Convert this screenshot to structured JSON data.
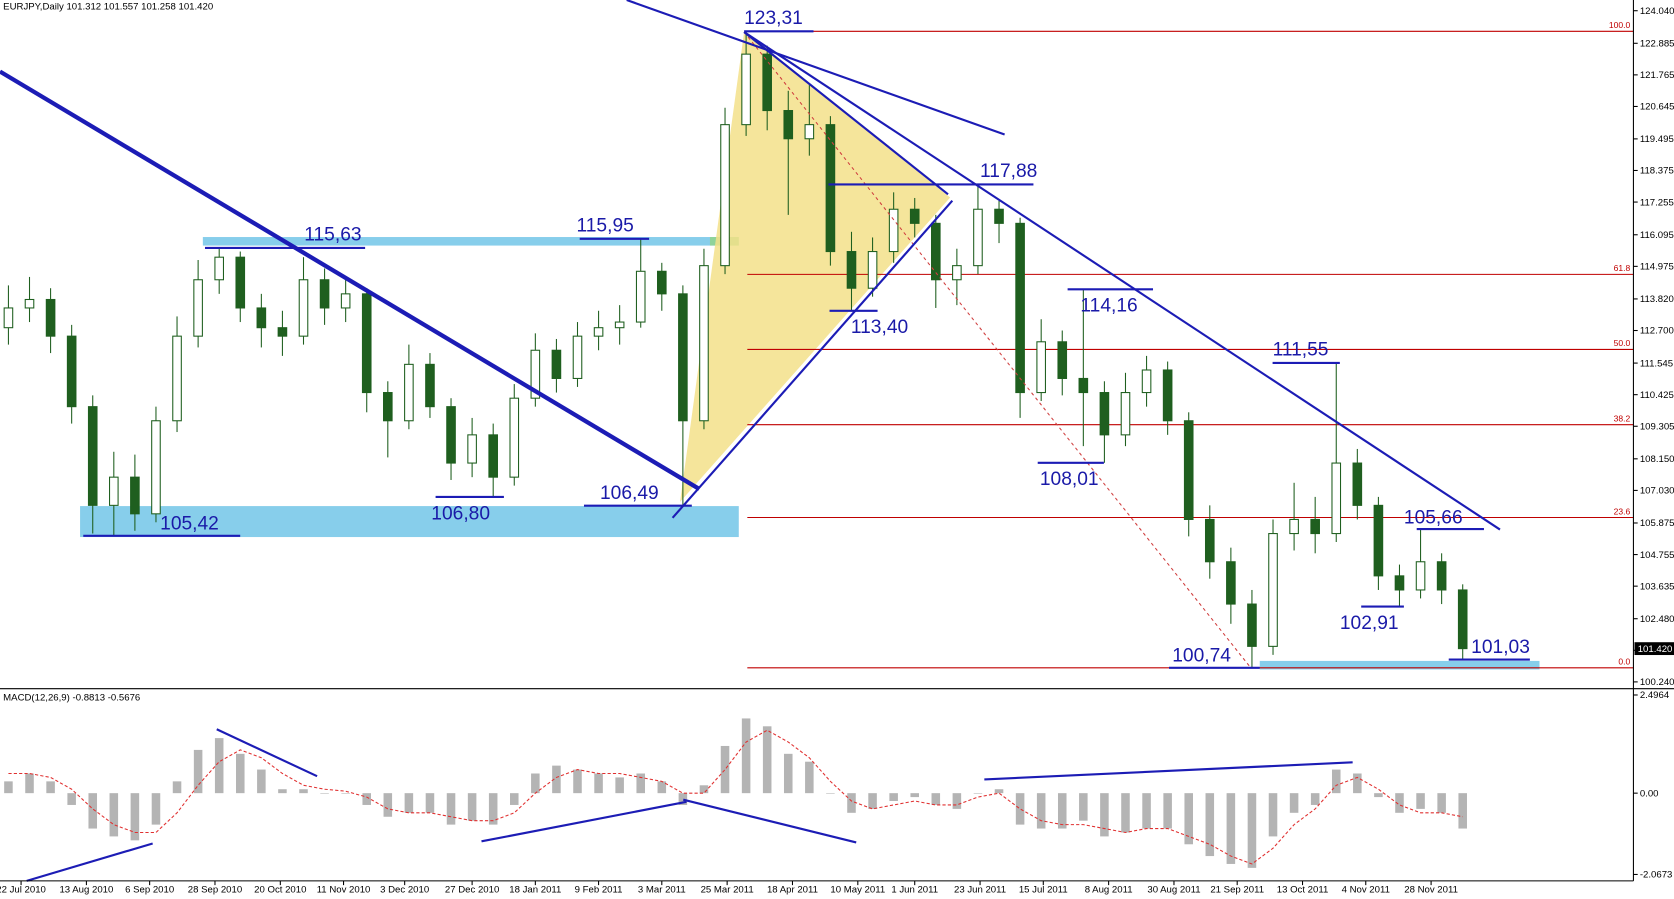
{
  "chart_data": [
    {
      "type": "candlestick",
      "title": "EURJPY,Daily  101.312 101.557 101.258 101.420",
      "colors": {
        "up": "#ffffff",
        "down": "#1f5f1f",
        "outline": "#1f5f1f"
      },
      "ohlc": [
        [
          112.8,
          114.3,
          112.2,
          113.5
        ],
        [
          113.5,
          114.6,
          113.0,
          113.8
        ],
        [
          113.8,
          114.2,
          111.9,
          112.5
        ],
        [
          112.5,
          112.9,
          109.4,
          110.0
        ],
        [
          110.0,
          110.4,
          105.5,
          106.5
        ],
        [
          106.5,
          108.4,
          105.4,
          107.5
        ],
        [
          107.5,
          108.3,
          105.6,
          106.2
        ],
        [
          106.2,
          110.0,
          105.9,
          109.5
        ],
        [
          109.5,
          113.2,
          109.1,
          112.5
        ],
        [
          112.5,
          115.2,
          112.1,
          114.5
        ],
        [
          114.5,
          115.63,
          114.0,
          115.3
        ],
        [
          115.3,
          115.5,
          113.0,
          113.5
        ],
        [
          113.5,
          114.0,
          112.1,
          112.8
        ],
        [
          112.8,
          113.4,
          111.8,
          112.5
        ],
        [
          112.5,
          115.3,
          112.2,
          114.5
        ],
        [
          114.5,
          114.9,
          112.9,
          113.5
        ],
        [
          113.5,
          114.6,
          113.0,
          114.0
        ],
        [
          114.0,
          114.2,
          109.8,
          110.5
        ],
        [
          110.5,
          110.9,
          108.2,
          109.5
        ],
        [
          109.5,
          112.2,
          109.2,
          111.5
        ],
        [
          111.5,
          111.9,
          109.6,
          110.0
        ],
        [
          110.0,
          110.3,
          107.4,
          108.0
        ],
        [
          108.0,
          109.6,
          107.5,
          109.0
        ],
        [
          109.0,
          109.4,
          106.8,
          107.5
        ],
        [
          107.5,
          110.8,
          107.2,
          110.3
        ],
        [
          110.3,
          112.6,
          110.0,
          112.0
        ],
        [
          112.0,
          112.4,
          110.5,
          111.0
        ],
        [
          111.0,
          113.0,
          110.7,
          112.5
        ],
        [
          112.5,
          113.4,
          112.0,
          112.8
        ],
        [
          112.8,
          113.6,
          112.2,
          113.0
        ],
        [
          113.0,
          115.95,
          112.8,
          114.8
        ],
        [
          114.8,
          115.1,
          113.4,
          114.0
        ],
        [
          114.0,
          114.3,
          106.49,
          109.5
        ],
        [
          109.5,
          115.6,
          109.2,
          115.0
        ],
        [
          115.0,
          120.6,
          114.7,
          120.0
        ],
        [
          120.0,
          123.31,
          119.6,
          122.5
        ],
        [
          122.5,
          122.8,
          119.8,
          120.5
        ],
        [
          120.5,
          121.2,
          116.8,
          119.5
        ],
        [
          119.5,
          121.4,
          118.9,
          120.0
        ],
        [
          120.0,
          120.3,
          115.0,
          115.5
        ],
        [
          115.5,
          116.2,
          113.4,
          114.2
        ],
        [
          114.2,
          116.0,
          113.9,
          115.5
        ],
        [
          115.5,
          117.6,
          115.1,
          117.0
        ],
        [
          117.0,
          117.4,
          116.0,
          116.5
        ],
        [
          116.5,
          116.8,
          113.5,
          114.5
        ],
        [
          114.5,
          115.6,
          113.6,
          115.0
        ],
        [
          115.0,
          117.88,
          114.7,
          117.0
        ],
        [
          117.0,
          117.3,
          115.8,
          116.5
        ],
        [
          116.5,
          116.7,
          109.6,
          110.5
        ],
        [
          110.5,
          113.1,
          110.2,
          112.3
        ],
        [
          112.3,
          112.7,
          110.4,
          111.0
        ],
        [
          111.0,
          114.16,
          108.6,
          110.5
        ],
        [
          110.5,
          110.9,
          108.01,
          109.0
        ],
        [
          109.0,
          111.2,
          108.6,
          110.5
        ],
        [
          110.5,
          111.8,
          110.0,
          111.3
        ],
        [
          111.3,
          111.6,
          109.0,
          109.5
        ],
        [
          109.5,
          109.8,
          105.4,
          106.0
        ],
        [
          106.0,
          106.5,
          103.9,
          104.5
        ],
        [
          104.5,
          105.0,
          102.3,
          103.0
        ],
        [
          103.0,
          103.5,
          100.74,
          101.5
        ],
        [
          101.5,
          106.0,
          101.2,
          105.5
        ],
        [
          105.5,
          107.3,
          104.9,
          106.0
        ],
        [
          106.0,
          106.8,
          104.8,
          105.5
        ],
        [
          105.5,
          111.55,
          105.2,
          108.0
        ],
        [
          108.0,
          108.5,
          106.0,
          106.5
        ],
        [
          106.5,
          106.8,
          103.5,
          104.0
        ],
        [
          104.0,
          104.4,
          102.91,
          103.5
        ],
        [
          103.5,
          105.66,
          103.2,
          104.5
        ],
        [
          104.5,
          104.8,
          103.0,
          103.5
        ],
        [
          103.5,
          103.7,
          101.03,
          101.42
        ]
      ],
      "xlim": [
        -0.4,
        77.1
      ],
      "xticks": [
        {
          "value": 0.6,
          "label": "22 Jul 2010"
        },
        {
          "value": 3.7,
          "label": "13 Aug 2010"
        },
        {
          "value": 6.7,
          "label": "6 Sep 2010"
        },
        {
          "value": 9.8,
          "label": "28 Sep 2010"
        },
        {
          "value": 12.9,
          "label": "20 Oct 2010"
        },
        {
          "value": 15.9,
          "label": "11 Nov 2010"
        },
        {
          "value": 18.8,
          "label": "3 Dec 2010"
        },
        {
          "value": 22.0,
          "label": "27 Dec 2010"
        },
        {
          "value": 25.0,
          "label": "18 Jan 2011"
        },
        {
          "value": 28.0,
          "label": "9 Feb 2011"
        },
        {
          "value": 31.0,
          "label": "3 Mar 2011"
        },
        {
          "value": 34.1,
          "label": "25 Mar 2011"
        },
        {
          "value": 37.2,
          "label": "18 Apr 2011"
        },
        {
          "value": 40.3,
          "label": "10 May 2011"
        },
        {
          "value": 43.0,
          "label": "1 Jun 2011"
        },
        {
          "value": 46.1,
          "label": "23 Jun 2011"
        },
        {
          "value": 49.1,
          "label": "15 Jul 2011"
        },
        {
          "value": 52.2,
          "label": "8 Aug 2011"
        },
        {
          "value": 55.3,
          "label": "30 Aug 2011"
        },
        {
          "value": 58.3,
          "label": "21 Sep 2011"
        },
        {
          "value": 61.4,
          "label": "13 Oct 2011"
        },
        {
          "value": 64.4,
          "label": "4 Nov 2011"
        },
        {
          "value": 67.5,
          "label": "28 Nov 2011"
        }
      ],
      "ylim": [
        100.0,
        124.42
      ],
      "yticks": [
        {
          "value": 124.04,
          "label": "124.040"
        },
        {
          "value": 122.885,
          "label": "122.885"
        },
        {
          "value": 121.765,
          "label": "121.765"
        },
        {
          "value": 120.645,
          "label": "120.645"
        },
        {
          "value": 119.495,
          "label": "119.495"
        },
        {
          "value": 118.375,
          "label": "118.375"
        },
        {
          "value": 117.255,
          "label": "117.255"
        },
        {
          "value": 116.095,
          "label": "116.095"
        },
        {
          "value": 114.975,
          "label": "114.975"
        },
        {
          "value": 113.82,
          "label": "113.820"
        },
        {
          "value": 112.7,
          "label": "112.700"
        },
        {
          "value": 111.545,
          "label": "111.545"
        },
        {
          "value": 110.425,
          "label": "110.425"
        },
        {
          "value": 109.305,
          "label": "109.305"
        },
        {
          "value": 108.15,
          "label": "108.150"
        },
        {
          "value": 107.03,
          "label": "107.030"
        },
        {
          "value": 105.875,
          "label": "105.875"
        },
        {
          "value": 104.755,
          "label": "104.755"
        },
        {
          "value": 103.635,
          "label": "103.635"
        },
        {
          "value": 102.48,
          "label": "102.480"
        },
        {
          "value": 101.36,
          "label": "101.360"
        },
        {
          "value": 100.24,
          "label": "100.240"
        }
      ],
      "last_price": {
        "value": 101.42,
        "label": "101.420"
      },
      "annotations": [
        {
          "label": "123,31",
          "value": 123.31
        },
        {
          "label": "117,88",
          "value": 117.88
        },
        {
          "label": "115,63",
          "value": 115.63
        },
        {
          "label": "115,95",
          "value": 115.95
        },
        {
          "label": "114,16",
          "value": 114.16
        },
        {
          "label": "113,40",
          "value": 113.4
        },
        {
          "label": "111,55",
          "value": 111.55
        },
        {
          "label": "108,01",
          "value": 108.01
        },
        {
          "label": "106,80",
          "value": 106.8
        },
        {
          "label": "106,49",
          "value": 106.49
        },
        {
          "label": "105,66",
          "value": 105.66
        },
        {
          "label": "105,42",
          "value": 105.42
        },
        {
          "label": "102,91",
          "value": 102.91
        },
        {
          "label": "100,74",
          "value": 100.74
        },
        {
          "label": "101,03",
          "value": 101.03
        }
      ],
      "fib_levels": [
        {
          "level": {
            "value": 100,
            "label": "100.0"
          },
          "price": 123.31
        },
        {
          "level": 61.8,
          "price": 114.69
        },
        {
          "level": {
            "value": 50,
            "label": "50.0"
          },
          "price": 112.03
        },
        {
          "level": 38.2,
          "price": 109.36
        },
        {
          "level": 23.6,
          "price": 106.07
        },
        {
          "level": {
            "value": 0,
            "label": "0.0"
          },
          "price": 100.74
        }
      ]
    },
    {
      "type": "macd",
      "title": "MACD(12,26,9) -0.8813 -0.5676",
      "histogram": {
        "color": "#b4b4b4",
        "values": [
          0.3,
          0.5,
          0.3,
          -0.3,
          -0.9,
          -1.1,
          -1.2,
          -0.8,
          0.3,
          1.1,
          1.4,
          1.0,
          0.6,
          0.1,
          0.1,
          0.0,
          0.0,
          -0.3,
          -0.6,
          -0.5,
          -0.5,
          -0.8,
          -0.7,
          -0.8,
          -0.3,
          0.5,
          0.7,
          0.6,
          0.5,
          0.4,
          0.5,
          0.3,
          -0.3,
          0.2,
          1.2,
          1.9,
          1.7,
          1.0,
          0.8,
          0.0,
          -0.5,
          -0.4,
          -0.2,
          -0.1,
          -0.3,
          -0.4,
          0.0,
          0.1,
          -0.8,
          -0.9,
          -0.9,
          -0.7,
          -1.1,
          -1.0,
          -0.9,
          -0.9,
          -1.3,
          -1.6,
          -1.8,
          -1.9,
          -1.1,
          -0.5,
          -0.3,
          0.6,
          0.5,
          -0.1,
          -0.5,
          -0.4,
          -0.5,
          -0.9
        ]
      },
      "signal": {
        "color": "#e03030",
        "values": [
          0.5,
          0.5,
          0.4,
          0.1,
          -0.4,
          -0.8,
          -1.0,
          -1.0,
          -0.5,
          0.2,
          0.8,
          1.1,
          0.9,
          0.5,
          0.2,
          0.1,
          0.05,
          -0.1,
          -0.4,
          -0.5,
          -0.5,
          -0.6,
          -0.7,
          -0.7,
          -0.5,
          0.0,
          0.4,
          0.6,
          0.5,
          0.5,
          0.4,
          0.3,
          0.0,
          0.0,
          0.6,
          1.3,
          1.6,
          1.3,
          0.9,
          0.3,
          -0.2,
          -0.4,
          -0.3,
          -0.2,
          -0.3,
          -0.3,
          -0.1,
          0.0,
          -0.4,
          -0.7,
          -0.8,
          -0.8,
          -0.9,
          -1.0,
          -0.9,
          -0.9,
          -1.1,
          -1.3,
          -1.6,
          -1.8,
          -1.4,
          -0.8,
          -0.4,
          0.2,
          0.4,
          0.1,
          -0.3,
          -0.5,
          -0.5,
          -0.6
        ]
      },
      "ylim": [
        -2.23,
        2.63
      ],
      "yticks": [
        {
          "value": 2.4964,
          "label": "2.4964"
        },
        {
          "value": 0,
          "label": "0.00"
        },
        {
          "value": -2.0673,
          "label": "-2.0673"
        }
      ]
    }
  ]
}
